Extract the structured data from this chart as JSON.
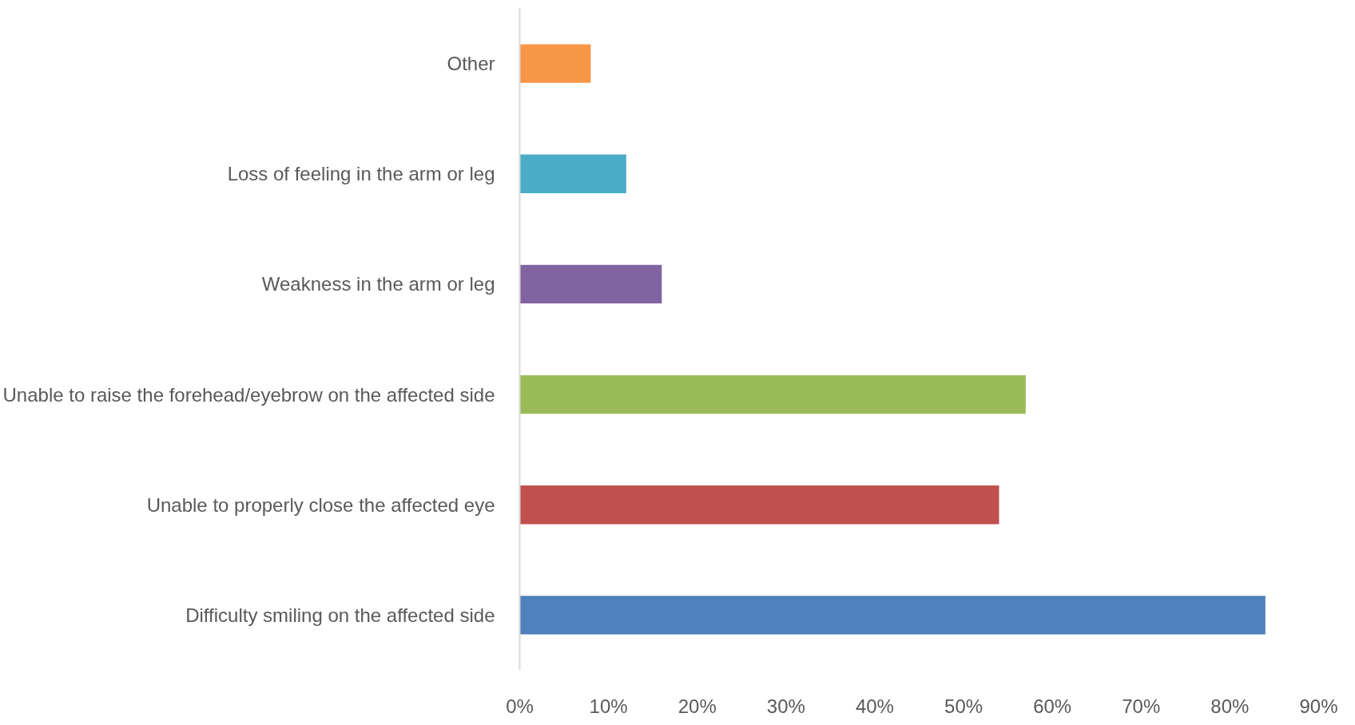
{
  "chart_data": {
    "type": "bar",
    "orientation": "horizontal",
    "categories": [
      "Other",
      "Loss of feeling in the arm or leg",
      "Weakness in the arm or leg",
      "Unable to raise the forehead/eyebrow on the affected side",
      "Unable to properly close the affected eye",
      "Difficulty smiling on the affected side"
    ],
    "values": [
      8,
      12,
      16,
      57,
      54,
      84
    ],
    "colors": [
      "#f79646",
      "#4bacc6",
      "#8064a2",
      "#9bbb59",
      "#c0504d",
      "#4f81bd"
    ],
    "xlim": [
      0,
      90
    ],
    "xticks": [
      {
        "value": 0,
        "label": "0%"
      },
      {
        "value": 10,
        "label": "10%"
      },
      {
        "value": 20,
        "label": "20%"
      },
      {
        "value": 30,
        "label": "30%"
      },
      {
        "value": 40,
        "label": "40%"
      },
      {
        "value": 50,
        "label": "50%"
      },
      {
        "value": 60,
        "label": "60%"
      },
      {
        "value": 70,
        "label": "70%"
      },
      {
        "value": 80,
        "label": "80%"
      },
      {
        "value": 90,
        "label": "90%"
      }
    ],
    "grid": false
  }
}
